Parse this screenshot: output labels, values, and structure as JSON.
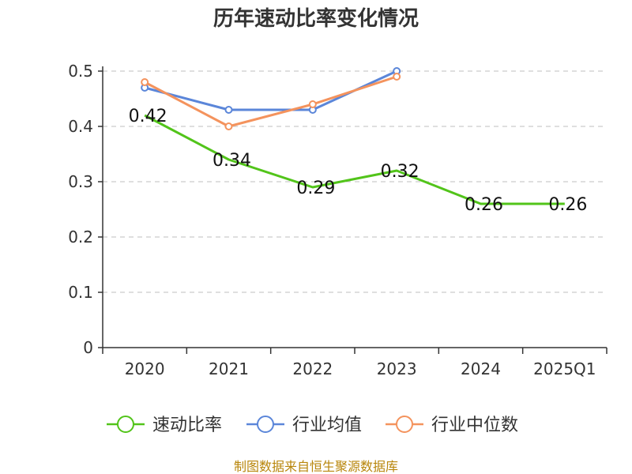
{
  "chart_data": {
    "type": "line",
    "title": "历年速动比率变化情况",
    "categories": [
      "2020",
      "2021",
      "2022",
      "2023",
      "2024",
      "2025Q1"
    ],
    "ylim": [
      0,
      0.5
    ],
    "yticks": [
      {
        "value": 0,
        "label": "0"
      },
      {
        "value": 0.1,
        "label": "0.1"
      },
      {
        "value": 0.2,
        "label": "0.2"
      },
      {
        "value": 0.3,
        "label": "0.3"
      },
      {
        "value": 0.4,
        "label": "0.4"
      },
      {
        "value": 0.5,
        "label": "0.5"
      }
    ],
    "grid": true,
    "legend_position": "bottom",
    "series": [
      {
        "key": "quick-ratio",
        "name": "速动比率",
        "color": "#52c41a",
        "values": [
          0.42,
          0.34,
          0.29,
          0.32,
          0.26,
          0.26
        ],
        "value_labels": [
          "0.42",
          "0.34",
          "0.29",
          "0.32",
          "0.26",
          "0.26"
        ],
        "show_labels": true,
        "show_markers": false
      },
      {
        "key": "industry-mean",
        "name": "行业均值",
        "color": "#5b86d9",
        "values": [
          0.47,
          0.43,
          0.43,
          0.5,
          null,
          null
        ],
        "show_labels": false,
        "show_markers": true
      },
      {
        "key": "industry-median",
        "name": "行业中位数",
        "color": "#f4935d",
        "values": [
          0.48,
          0.4,
          0.44,
          0.49,
          null,
          null
        ],
        "show_labels": false,
        "show_markers": true
      }
    ],
    "source": "制图数据来自恒生聚源数据库"
  }
}
